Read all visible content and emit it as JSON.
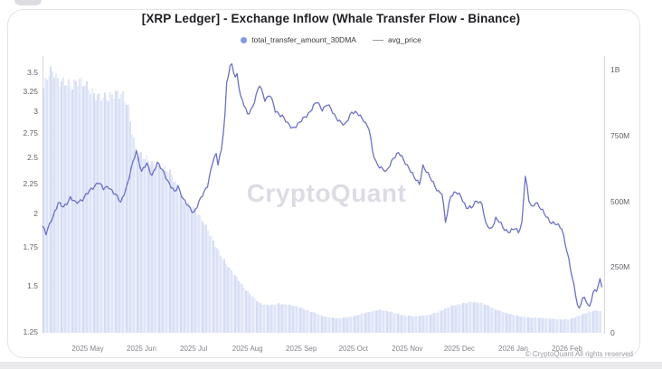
{
  "header": {
    "title": "[XRP Ledger] - Exchange Inflow (Whale Transfer Flow - Binance)"
  },
  "legend": {
    "items": [
      {
        "label": "total_transfer_amount_30DMA",
        "marker": "circle",
        "color": "#7f9ae2"
      },
      {
        "label": "avg_price",
        "marker": "dash",
        "color": "#9a9aa2"
      }
    ]
  },
  "watermark": {
    "text": "CryptoQuant"
  },
  "footer": {
    "copyright": "© CryptoQuant All rights reserved"
  },
  "chart_data": {
    "type": "mixed",
    "title": "[XRP Ledger] - Exchange Inflow (Whale Transfer Flow - Binance)",
    "grid": false,
    "legend_position": "top",
    "x_axis": {
      "range": [
        "2025-04-05",
        "2026-02-21"
      ],
      "ticks": [
        {
          "label": "2025 May",
          "date": "2025-05-01"
        },
        {
          "label": "2025 Jun",
          "date": "2025-06-01"
        },
        {
          "label": "2025 Jul",
          "date": "2025-07-01"
        },
        {
          "label": "2025 Aug",
          "date": "2025-08-01"
        },
        {
          "label": "2025 Sep",
          "date": "2025-09-01"
        },
        {
          "label": "2025 Oct",
          "date": "2025-10-01"
        },
        {
          "label": "2025 Nov",
          "date": "2025-11-01"
        },
        {
          "label": "2025 Dec",
          "date": "2025-12-01"
        },
        {
          "label": "2026 Jan",
          "date": "2026-01-01"
        },
        {
          "label": "2026 Feb",
          "date": "2026-02-01"
        }
      ]
    },
    "left_axis": {
      "series": "avg_price",
      "scale": "log",
      "range": [
        1.25,
        3.5
      ],
      "ticks": [
        3.5,
        3.25,
        3,
        2.75,
        2.5,
        2.25,
        2,
        1.75,
        1.5,
        1.25
      ]
    },
    "right_axis": {
      "series": "total_transfer_amount_30DMA",
      "scale": "linear",
      "unit": "XRP",
      "range_millions": [
        0,
        1000
      ],
      "ticks": [
        {
          "label": "1B",
          "value_millions": 1000
        },
        {
          "label": "750M",
          "value_millions": 750
        },
        {
          "label": "500M",
          "value_millions": 500
        },
        {
          "label": "250M",
          "value_millions": 250
        },
        {
          "label": "0",
          "value_millions": 0
        }
      ]
    },
    "series": [
      {
        "name": "total_transfer_amount_30DMA",
        "type": "bar",
        "axis": "right",
        "unit": "millions",
        "bar_style": "daily 1px stripes",
        "colors": [
          "#bcc8ef",
          "#d3dbf5",
          "#c5d0f2",
          "#dee4f8",
          "#b3c1ec",
          "#cdd6f3"
        ],
        "interpolation": "linear-daily",
        "keypoints": [
          [
            "2025-04-05",
            920
          ],
          [
            "2025-04-08",
            975
          ],
          [
            "2025-04-11",
            985
          ],
          [
            "2025-04-14",
            955
          ],
          [
            "2025-04-18",
            965
          ],
          [
            "2025-04-22",
            945
          ],
          [
            "2025-04-26",
            950
          ],
          [
            "2025-05-01",
            930
          ],
          [
            "2025-05-05",
            915
          ],
          [
            "2025-05-09",
            905
          ],
          [
            "2025-05-13",
            885
          ],
          [
            "2025-05-17",
            900
          ],
          [
            "2025-05-21",
            910
          ],
          [
            "2025-05-24",
            880
          ],
          [
            "2025-05-26",
            790
          ],
          [
            "2025-05-29",
            685
          ],
          [
            "2025-06-02",
            660
          ],
          [
            "2025-06-07",
            645
          ],
          [
            "2025-06-12",
            638
          ],
          [
            "2025-06-17",
            610
          ],
          [
            "2025-06-22",
            545
          ],
          [
            "2025-06-26",
            500
          ],
          [
            "2025-07-01",
            478
          ],
          [
            "2025-07-06",
            425
          ],
          [
            "2025-07-11",
            365
          ],
          [
            "2025-07-16",
            305
          ],
          [
            "2025-07-21",
            250
          ],
          [
            "2025-07-26",
            205
          ],
          [
            "2025-08-01",
            158
          ],
          [
            "2025-08-05",
            132
          ],
          [
            "2025-08-09",
            108
          ],
          [
            "2025-08-14",
            104
          ],
          [
            "2025-08-19",
            112
          ],
          [
            "2025-08-24",
            108
          ],
          [
            "2025-09-01",
            94
          ],
          [
            "2025-09-08",
            78
          ],
          [
            "2025-09-15",
            60
          ],
          [
            "2025-09-22",
            55
          ],
          [
            "2025-10-01",
            62
          ],
          [
            "2025-10-08",
            76
          ],
          [
            "2025-10-15",
            88
          ],
          [
            "2025-10-22",
            80
          ],
          [
            "2025-10-29",
            68
          ],
          [
            "2025-11-05",
            62
          ],
          [
            "2025-11-12",
            66
          ],
          [
            "2025-11-19",
            80
          ],
          [
            "2025-11-26",
            100
          ],
          [
            "2025-12-03",
            113
          ],
          [
            "2025-12-08",
            118
          ],
          [
            "2025-12-15",
            110
          ],
          [
            "2025-12-22",
            90
          ],
          [
            "2025-12-29",
            72
          ],
          [
            "2026-01-05",
            62
          ],
          [
            "2026-01-12",
            58
          ],
          [
            "2026-01-19",
            55
          ],
          [
            "2026-01-26",
            52
          ],
          [
            "2026-02-02",
            50
          ],
          [
            "2026-02-07",
            62
          ],
          [
            "2026-02-12",
            76
          ],
          [
            "2026-02-17",
            86
          ],
          [
            "2026-02-21",
            80
          ]
        ]
      },
      {
        "name": "avg_price",
        "type": "line",
        "axis": "left",
        "color": "#6c71c4",
        "line_width": 1.3,
        "interpolation": "linear-daily",
        "keypoints": [
          [
            "2025-04-05",
            1.9
          ],
          [
            "2025-04-07",
            1.84
          ],
          [
            "2025-04-10",
            1.95
          ],
          [
            "2025-04-14",
            2.08
          ],
          [
            "2025-04-17",
            2.05
          ],
          [
            "2025-04-21",
            2.13
          ],
          [
            "2025-04-24",
            2.08
          ],
          [
            "2025-04-28",
            2.12
          ],
          [
            "2025-05-02",
            2.18
          ],
          [
            "2025-05-07",
            2.27
          ],
          [
            "2025-05-10",
            2.2
          ],
          [
            "2025-05-13",
            2.23
          ],
          [
            "2025-05-17",
            2.15
          ],
          [
            "2025-05-20",
            2.09
          ],
          [
            "2025-05-24",
            2.25
          ],
          [
            "2025-05-29",
            2.57
          ],
          [
            "2025-06-01",
            2.36
          ],
          [
            "2025-06-04",
            2.43
          ],
          [
            "2025-06-07",
            2.33
          ],
          [
            "2025-06-10",
            2.44
          ],
          [
            "2025-06-14",
            2.35
          ],
          [
            "2025-06-17",
            2.25
          ],
          [
            "2025-06-20",
            2.17
          ],
          [
            "2025-06-22",
            2.23
          ],
          [
            "2025-06-25",
            2.12
          ],
          [
            "2025-06-28",
            2.05
          ],
          [
            "2025-07-01",
            2.01
          ],
          [
            "2025-07-04",
            2.09
          ],
          [
            "2025-07-07",
            2.17
          ],
          [
            "2025-07-09",
            2.24
          ],
          [
            "2025-07-12",
            2.46
          ],
          [
            "2025-07-14",
            2.52
          ],
          [
            "2025-07-15",
            2.43
          ],
          [
            "2025-07-17",
            2.58
          ],
          [
            "2025-07-19",
            2.95
          ],
          [
            "2025-07-20",
            3.35
          ],
          [
            "2025-07-22",
            3.57
          ],
          [
            "2025-07-23",
            3.6
          ],
          [
            "2025-07-25",
            3.43
          ],
          [
            "2025-07-26",
            3.49
          ],
          [
            "2025-07-28",
            3.18
          ],
          [
            "2025-08-01",
            2.96
          ],
          [
            "2025-08-04",
            3.06
          ],
          [
            "2025-08-08",
            3.32
          ],
          [
            "2025-08-11",
            3.15
          ],
          [
            "2025-08-14",
            3.2
          ],
          [
            "2025-08-17",
            3.0
          ],
          [
            "2025-08-21",
            2.95
          ],
          [
            "2025-08-24",
            2.85
          ],
          [
            "2025-08-27",
            2.81
          ],
          [
            "2025-08-31",
            2.86
          ],
          [
            "2025-09-06",
            3.0
          ],
          [
            "2025-09-10",
            3.11
          ],
          [
            "2025-09-13",
            3.03
          ],
          [
            "2025-09-16",
            3.08
          ],
          [
            "2025-09-20",
            2.96
          ],
          [
            "2025-09-24",
            2.86
          ],
          [
            "2025-09-26",
            2.83
          ],
          [
            "2025-09-30",
            3.0
          ],
          [
            "2025-10-03",
            2.97
          ],
          [
            "2025-10-07",
            2.9
          ],
          [
            "2025-10-10",
            2.8
          ],
          [
            "2025-10-12",
            2.55
          ],
          [
            "2025-10-14",
            2.45
          ],
          [
            "2025-10-17",
            2.4
          ],
          [
            "2025-10-20",
            2.35
          ],
          [
            "2025-10-24",
            2.5
          ],
          [
            "2025-10-27",
            2.54
          ],
          [
            "2025-10-30",
            2.47
          ],
          [
            "2025-11-02",
            2.4
          ],
          [
            "2025-11-05",
            2.3
          ],
          [
            "2025-11-08",
            2.25
          ],
          [
            "2025-11-10",
            2.42
          ],
          [
            "2025-11-13",
            2.33
          ],
          [
            "2025-11-16",
            2.26
          ],
          [
            "2025-11-19",
            2.18
          ],
          [
            "2025-11-21",
            2.16
          ],
          [
            "2025-11-23",
            1.93
          ],
          [
            "2025-11-26",
            2.15
          ],
          [
            "2025-11-29",
            2.17
          ],
          [
            "2025-12-02",
            2.14
          ],
          [
            "2025-12-05",
            2.05
          ],
          [
            "2025-12-08",
            2.04
          ],
          [
            "2025-12-11",
            2.11
          ],
          [
            "2025-12-14",
            2.08
          ],
          [
            "2025-12-16",
            1.92
          ],
          [
            "2025-12-19",
            1.88
          ],
          [
            "2025-12-22",
            1.96
          ],
          [
            "2025-12-24",
            1.93
          ],
          [
            "2025-12-27",
            1.88
          ],
          [
            "2025-12-30",
            1.86
          ],
          [
            "2026-01-02",
            1.88
          ],
          [
            "2026-01-04",
            1.86
          ],
          [
            "2026-01-06",
            1.93
          ],
          [
            "2026-01-08",
            2.32
          ],
          [
            "2026-01-10",
            2.1
          ],
          [
            "2026-01-12",
            2.05
          ],
          [
            "2026-01-14",
            2.1
          ],
          [
            "2026-01-17",
            2.03
          ],
          [
            "2026-01-20",
            1.98
          ],
          [
            "2026-01-23",
            1.93
          ],
          [
            "2026-01-26",
            1.91
          ],
          [
            "2026-01-29",
            1.89
          ],
          [
            "2026-02-01",
            1.72
          ],
          [
            "2026-02-03",
            1.6
          ],
          [
            "2026-02-05",
            1.5
          ],
          [
            "2026-02-07",
            1.4
          ],
          [
            "2026-02-08",
            1.37
          ],
          [
            "2026-02-10",
            1.43
          ],
          [
            "2026-02-12",
            1.41
          ],
          [
            "2026-02-14",
            1.38
          ],
          [
            "2026-02-16",
            1.47
          ],
          [
            "2026-02-18",
            1.47
          ],
          [
            "2026-02-20",
            1.53
          ],
          [
            "2026-02-21",
            1.5
          ]
        ]
      }
    ]
  }
}
